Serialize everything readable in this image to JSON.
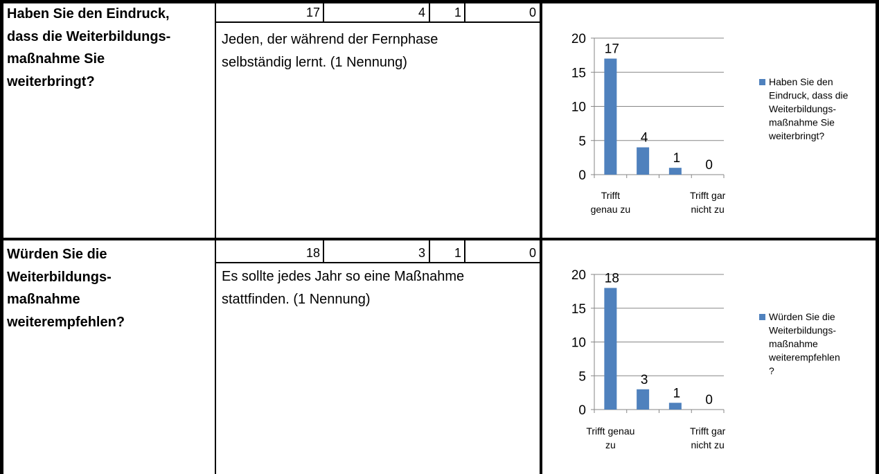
{
  "rows": [
    {
      "question_lines": [
        "Haben Sie den Eindruck,",
        "dass die Weiterbildungs-",
        "maßnahme Sie",
        "weiterbringt?"
      ],
      "counts": [
        "17",
        "4",
        "1",
        "0"
      ],
      "comment_lines": [
        "Jeden, der während der Fernphase",
        "selbständig lernt. (1 Nennung)"
      ],
      "category_label_lines": [
        [
          "Trifft",
          "genau zu"
        ],
        [
          "Trifft gar",
          "nicht zu"
        ]
      ],
      "legend_lines": [
        "Haben Sie den",
        "Eindruck, dass die",
        "Weiterbildungs-",
        "maßnahme Sie",
        "weiterbringt?"
      ]
    },
    {
      "question_lines": [
        "Würden Sie die",
        "Weiterbildungs-",
        "maßnahme",
        "weiterempfehlen?"
      ],
      "counts": [
        "18",
        "3",
        "1",
        "0"
      ],
      "comment_lines": [
        "Es sollte jedes Jahr so eine Maßnahme",
        "stattfinden. (1 Nennung)"
      ],
      "category_label_lines": [
        [
          "Trifft genau",
          "zu"
        ],
        [
          "Trifft gar",
          "nicht zu"
        ]
      ],
      "legend_lines": [
        "Würden Sie die",
        "Weiterbildungs-",
        "maßnahme",
        "weiterempfehlen",
        "?"
      ]
    }
  ],
  "chart_data": [
    {
      "type": "bar",
      "categories": [
        "Trifft genau zu",
        "",
        "",
        "Trifft gar nicht zu"
      ],
      "series": [
        {
          "name": "Haben Sie den Eindruck, dass die Weiterbildungs-maßnahme Sie weiterbringt?",
          "values": [
            17,
            4,
            1,
            0
          ]
        }
      ],
      "ylim": [
        0,
        20
      ],
      "yticks": [
        0,
        5,
        10,
        15,
        20
      ],
      "grid": true,
      "legend": "right",
      "color": "#4f81bd"
    },
    {
      "type": "bar",
      "categories": [
        "Trifft genau zu",
        "",
        "",
        "Trifft gar nicht zu"
      ],
      "series": [
        {
          "name": "Würden Sie die Weiterbildungs-maßnahme weiterempfehlen?",
          "values": [
            18,
            3,
            1,
            0
          ]
        }
      ],
      "ylim": [
        0,
        20
      ],
      "yticks": [
        0,
        5,
        10,
        15,
        20
      ],
      "grid": true,
      "legend": "right",
      "color": "#4f81bd"
    }
  ]
}
